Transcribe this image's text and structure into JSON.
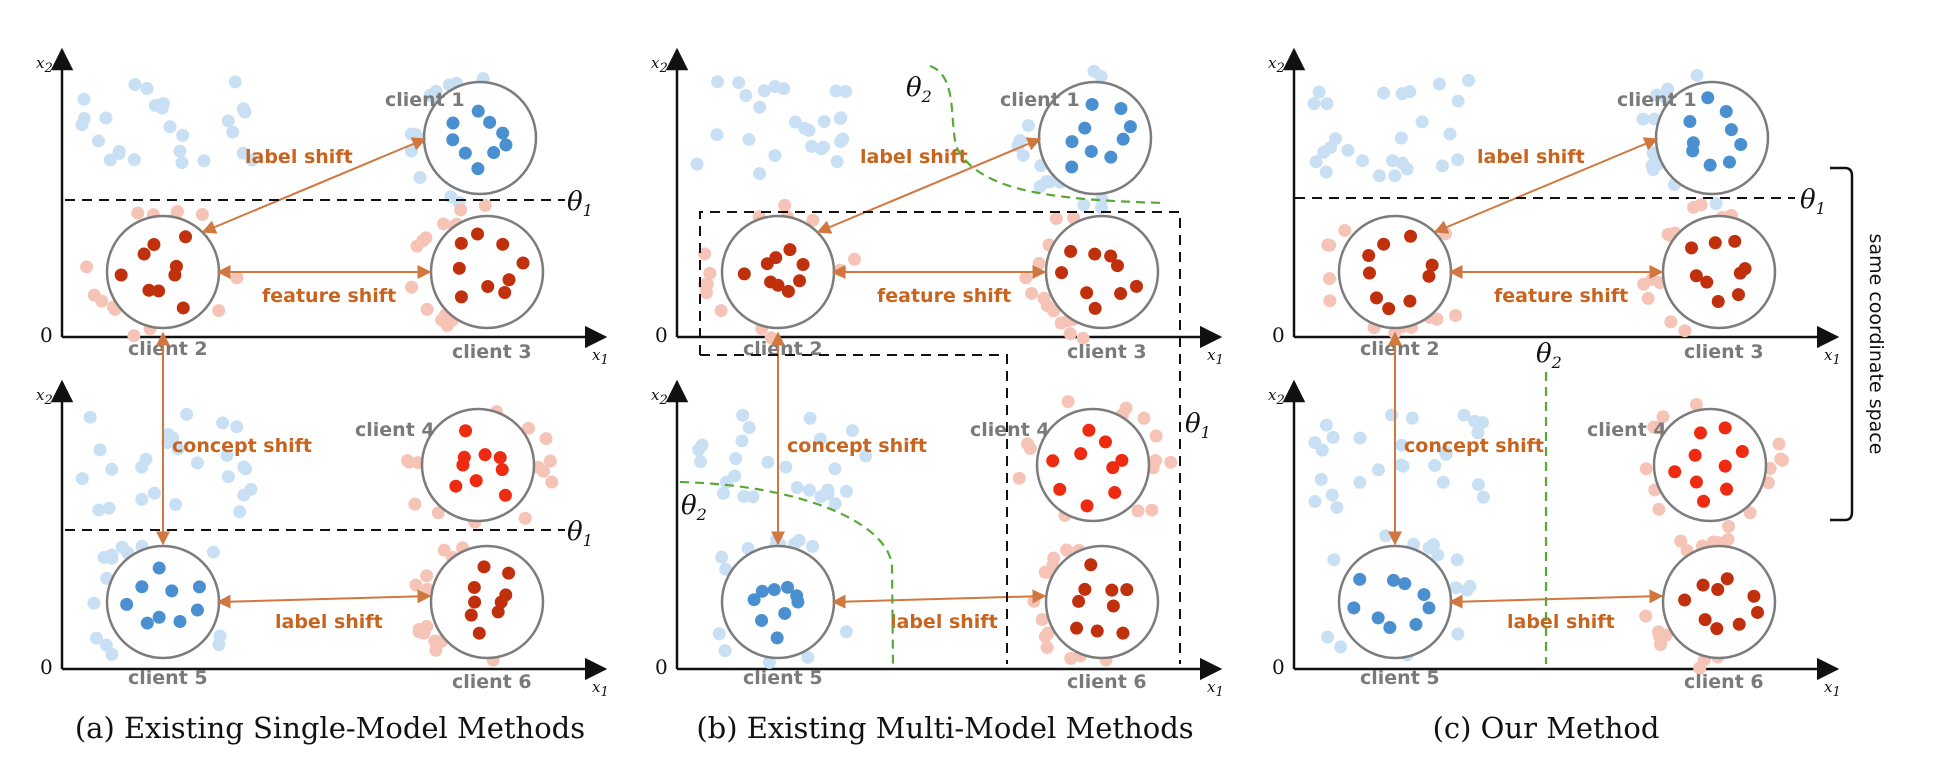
{
  "labels": {
    "client1": "client 1",
    "client2": "client 2",
    "client3": "client 3",
    "client4": "client 4",
    "client5": "client 5",
    "client6": "client 6",
    "label_shift": "label shift",
    "feature_shift": "feature shift",
    "concept_shift": "concept shift",
    "axis_x": "x1",
    "axis_y": "x2",
    "origin": "0",
    "theta1": "θ1",
    "theta2": "θ2"
  },
  "captions": {
    "a": "(a)  Existing Single-Model Methods",
    "b": "(b)  Existing Multi-Model Methods",
    "c": "(c)  Our Method"
  },
  "side_note": "same coordinate space",
  "colors": {
    "blue": "#4a90d0",
    "blue_light": "#c9e0f4",
    "red": "#c0300c",
    "red_light": "#f5c4b6",
    "bright_red": "#ee2a10",
    "arrow": "#d07840",
    "shift_text": "#c8641e",
    "client_text": "#7a7a7a",
    "theta2_boundary": "#5aa838"
  }
}
